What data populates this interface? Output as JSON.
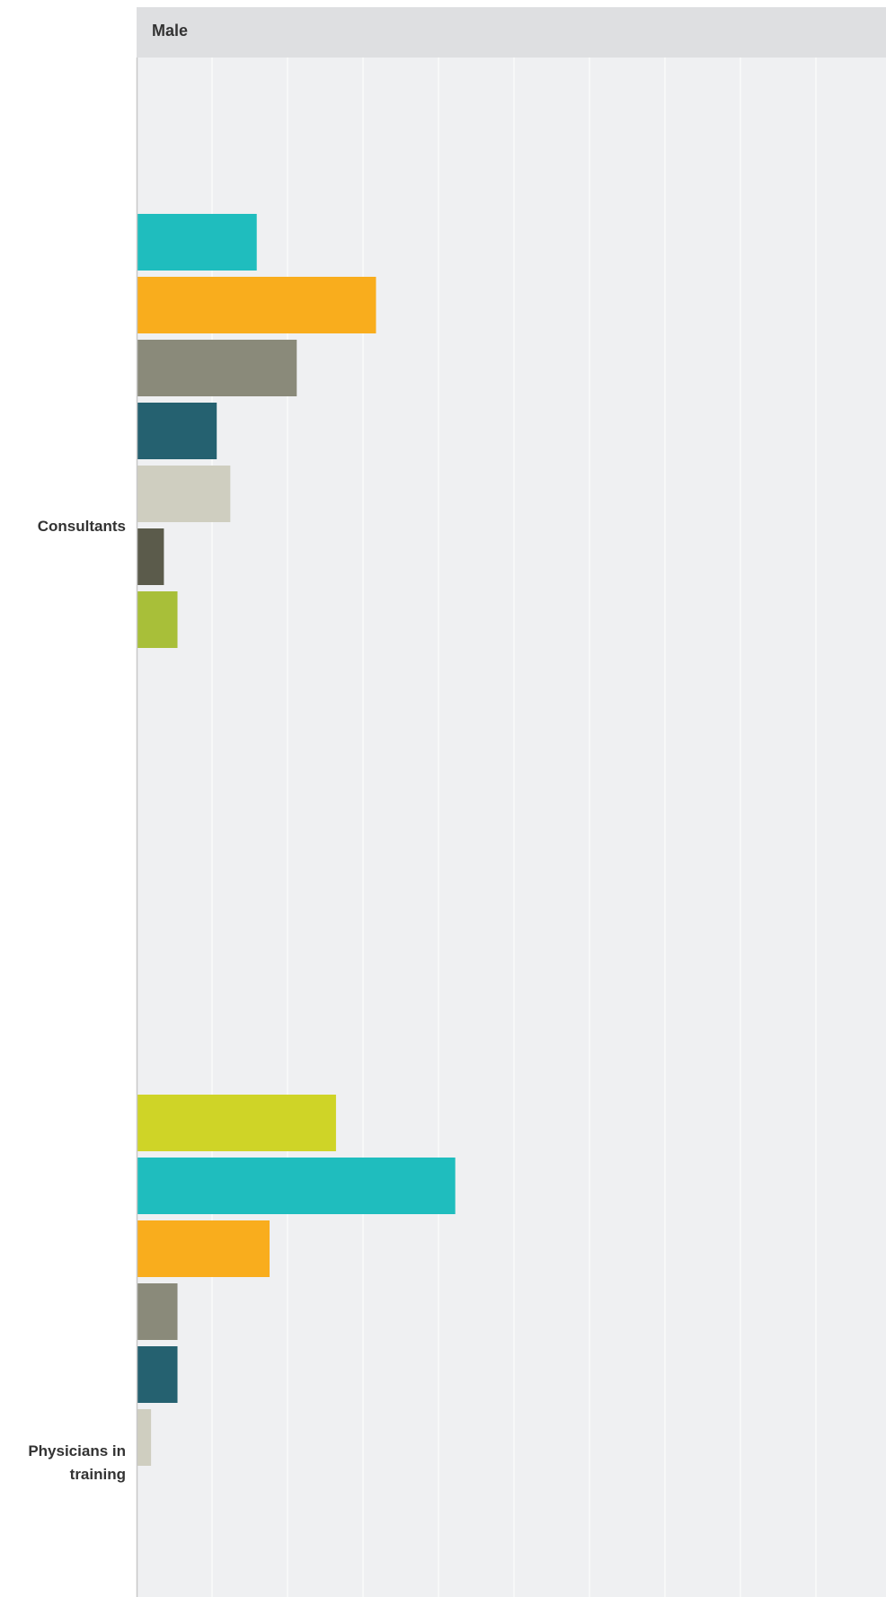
{
  "panel": {
    "title": "Male"
  },
  "colors": {
    "plot_background": "#eff0f2",
    "gridline": "#ffffff",
    "axis": "#c8c8c8",
    "panel_header": "#dedfe1"
  },
  "chart_data": {
    "type": "bar",
    "orientation": "horizontal",
    "grid": true,
    "xlim": [
      0,
      100
    ],
    "categories": [
      "Consultants",
      "Physicians in training"
    ],
    "groups": [
      {
        "category": "Consultants",
        "bars": [
          {
            "value": 15.8,
            "color": "#1fbdbe"
          },
          {
            "value": 31.6,
            "color": "#f9ad1d"
          },
          {
            "value": 21.1,
            "color": "#8a8a7a"
          },
          {
            "value": 10.5,
            "color": "#256170"
          },
          {
            "value": 12.3,
            "color": "#cfcec0"
          },
          {
            "value": 3.5,
            "color": "#5b5b4b"
          },
          {
            "value": 5.3,
            "color": "#a8bf39"
          }
        ]
      },
      {
        "category": "Physicians in training",
        "bars": [
          {
            "value": 26.3,
            "color": "#cfd427"
          },
          {
            "value": 42.1,
            "color": "#1fbdbe"
          },
          {
            "value": 17.5,
            "color": "#f9ad1d"
          },
          {
            "value": 5.3,
            "color": "#8a8a7a"
          },
          {
            "value": 5.3,
            "color": "#256170"
          },
          {
            "value": 1.8,
            "color": "#cfcec0"
          }
        ]
      }
    ]
  }
}
